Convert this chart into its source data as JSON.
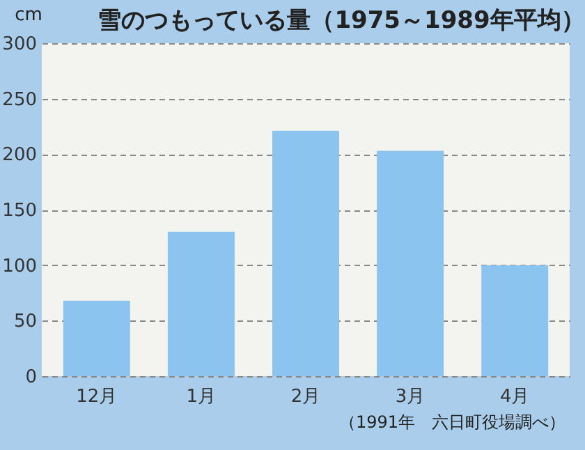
{
  "chart_data": {
    "type": "bar",
    "title": "雪のつもっている量（1975～1989年平均）",
    "ylabel": "cm",
    "categories": [
      "12月",
      "1月",
      "2月",
      "3月",
      "4月"
    ],
    "values": [
      68,
      130,
      221,
      203,
      100
    ],
    "color": "#8cc4f0",
    "ylim": [
      0,
      300
    ],
    "yticks": [
      0,
      50,
      100,
      150,
      200,
      250,
      300
    ],
    "grid": "y",
    "annotations": [
      "（1991年　六日町役場調べ）"
    ]
  }
}
